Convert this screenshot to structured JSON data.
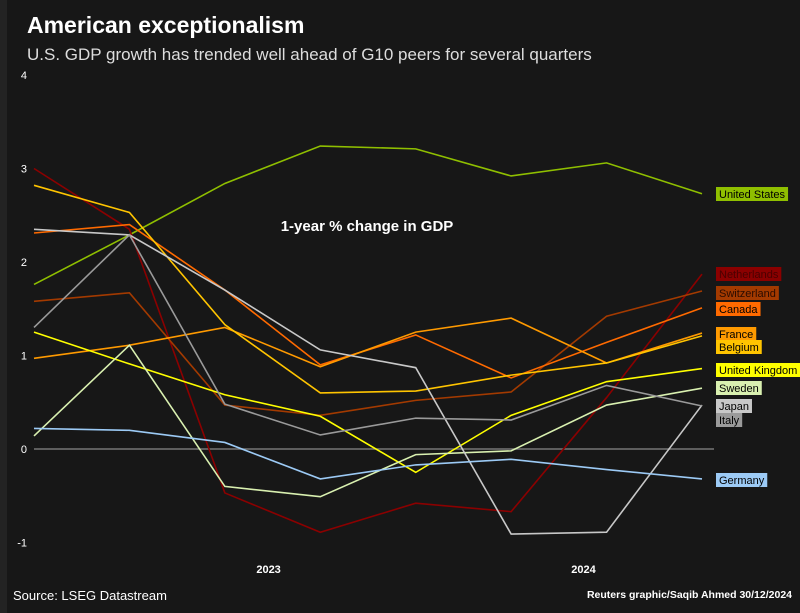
{
  "title": "American exceptionalism",
  "subtitle": "U.S. GDP growth has trended well ahead of G10 peers for several quarters",
  "source": "Source: LSEG Datastream",
  "credit": "Reuters graphic/Saqib Ahmed 30/12/2024",
  "chart_data": {
    "type": "line",
    "annotation": "1-year % change in GDP",
    "ylim": [
      -1,
      4
    ],
    "yticks": [
      "-1",
      "0",
      "1",
      "2",
      "3",
      "4"
    ],
    "xtick_labels": [
      {
        "label": "2023",
        "at": 2.5
      },
      {
        "label": "2024",
        "at": 5.8
      }
    ],
    "x": [
      0,
      1,
      2,
      3,
      4,
      5,
      6,
      7
    ],
    "series": [
      {
        "name": "United States",
        "color": "#8fbf00",
        "text": "#000",
        "values": [
          1.76,
          2.29,
          2.84,
          3.24,
          3.21,
          2.92,
          3.06,
          2.73
        ]
      },
      {
        "name": "Netherlands",
        "color": "#8b0000",
        "text": "#4a0000",
        "values": [
          3.0,
          2.35,
          -0.47,
          -0.89,
          -0.58,
          -0.67,
          0.55,
          1.87
        ]
      },
      {
        "name": "Switzerland",
        "color": "#a33a00",
        "text": "#2a0c00",
        "values": [
          1.58,
          1.67,
          0.47,
          0.36,
          0.52,
          0.61,
          1.42,
          1.69
        ]
      },
      {
        "name": "Canada",
        "color": "#ff6a00",
        "text": "#000",
        "values": [
          2.31,
          2.4,
          1.7,
          0.9,
          1.22,
          0.76,
          1.14,
          1.51
        ]
      },
      {
        "name": "France",
        "color": "#ff9a00",
        "text": "#000",
        "values": [
          0.97,
          1.11,
          1.3,
          0.88,
          1.25,
          1.4,
          0.92,
          1.24
        ]
      },
      {
        "name": "Belgium",
        "color": "#ffc400",
        "text": "#000",
        "values": [
          2.82,
          2.53,
          1.33,
          0.6,
          0.62,
          0.79,
          0.92,
          1.21
        ]
      },
      {
        "name": "United Kingdom",
        "color": "#ffff00",
        "text": "#000",
        "values": [
          1.25,
          0.91,
          0.58,
          0.35,
          -0.25,
          0.36,
          0.72,
          0.86
        ]
      },
      {
        "name": "Sweden",
        "color": "#d9f0b0",
        "text": "#000",
        "values": [
          0.14,
          1.11,
          -0.4,
          -0.51,
          -0.06,
          -0.02,
          0.47,
          0.65
        ]
      },
      {
        "name": "Japan",
        "color": "#c8c8c8",
        "text": "#000",
        "values": [
          2.35,
          2.29,
          1.7,
          1.06,
          0.87,
          -0.91,
          -0.89,
          0.47
        ]
      },
      {
        "name": "Italy",
        "color": "#9a9a9a",
        "text": "#000",
        "values": [
          1.3,
          2.29,
          0.48,
          0.15,
          0.33,
          0.31,
          0.68,
          0.46
        ]
      },
      {
        "name": "Germany",
        "color": "#9ccaf5",
        "text": "#000",
        "values": [
          0.22,
          0.2,
          0.07,
          -0.32,
          -0.17,
          -0.11,
          -0.22,
          -0.32
        ]
      }
    ]
  }
}
